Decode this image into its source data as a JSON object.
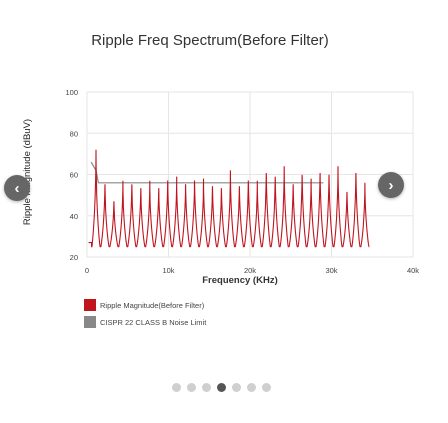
{
  "chart_data": {
    "type": "line",
    "title": "Ripple Freq Spectrum(Before Filter)",
    "xlabel": "Frequency (KHz)",
    "ylabel": "Ripple Magnitude (dBuV)",
    "xlim": [
      0,
      40000
    ],
    "ylim": [
      20,
      100
    ],
    "x_ticks": [
      0,
      10000,
      20000,
      30000,
      40000
    ],
    "x_tick_labels": [
      "0",
      "10k",
      "20k",
      "30k",
      "40k"
    ],
    "y_ticks": [
      20,
      40,
      60,
      80,
      100
    ],
    "y_tick_labels": [
      "20",
      "40",
      "60",
      "80",
      "100"
    ],
    "grid": true,
    "legend_position": "bottom-left",
    "series": [
      {
        "name": "Ripple Magnitude(Before Filter)",
        "color": "#c0141f",
        "kind": "harmonic-peaks",
        "fundamental": 1100,
        "harmonics": 31,
        "floor": 25,
        "peaks": [
          72,
          58,
          49,
          57,
          58,
          56,
          57,
          56,
          60,
          59,
          58,
          60,
          58,
          57,
          56,
          62,
          57,
          60,
          57,
          64,
          62,
          64,
          58,
          63,
          58,
          64,
          63,
          64,
          54,
          64,
          56
        ]
      },
      {
        "name": "CISPR 22 CLASS B Noise Limit",
        "color": "#888888",
        "kind": "limit-line",
        "x": [
          500,
          1100,
          1400,
          29000
        ],
        "y": [
          66,
          62,
          56,
          56
        ]
      }
    ]
  },
  "carousel": {
    "prev_icon": "chevron-left-icon",
    "next_icon": "chevron-right-icon",
    "dots": 7,
    "active_dot": 3
  }
}
